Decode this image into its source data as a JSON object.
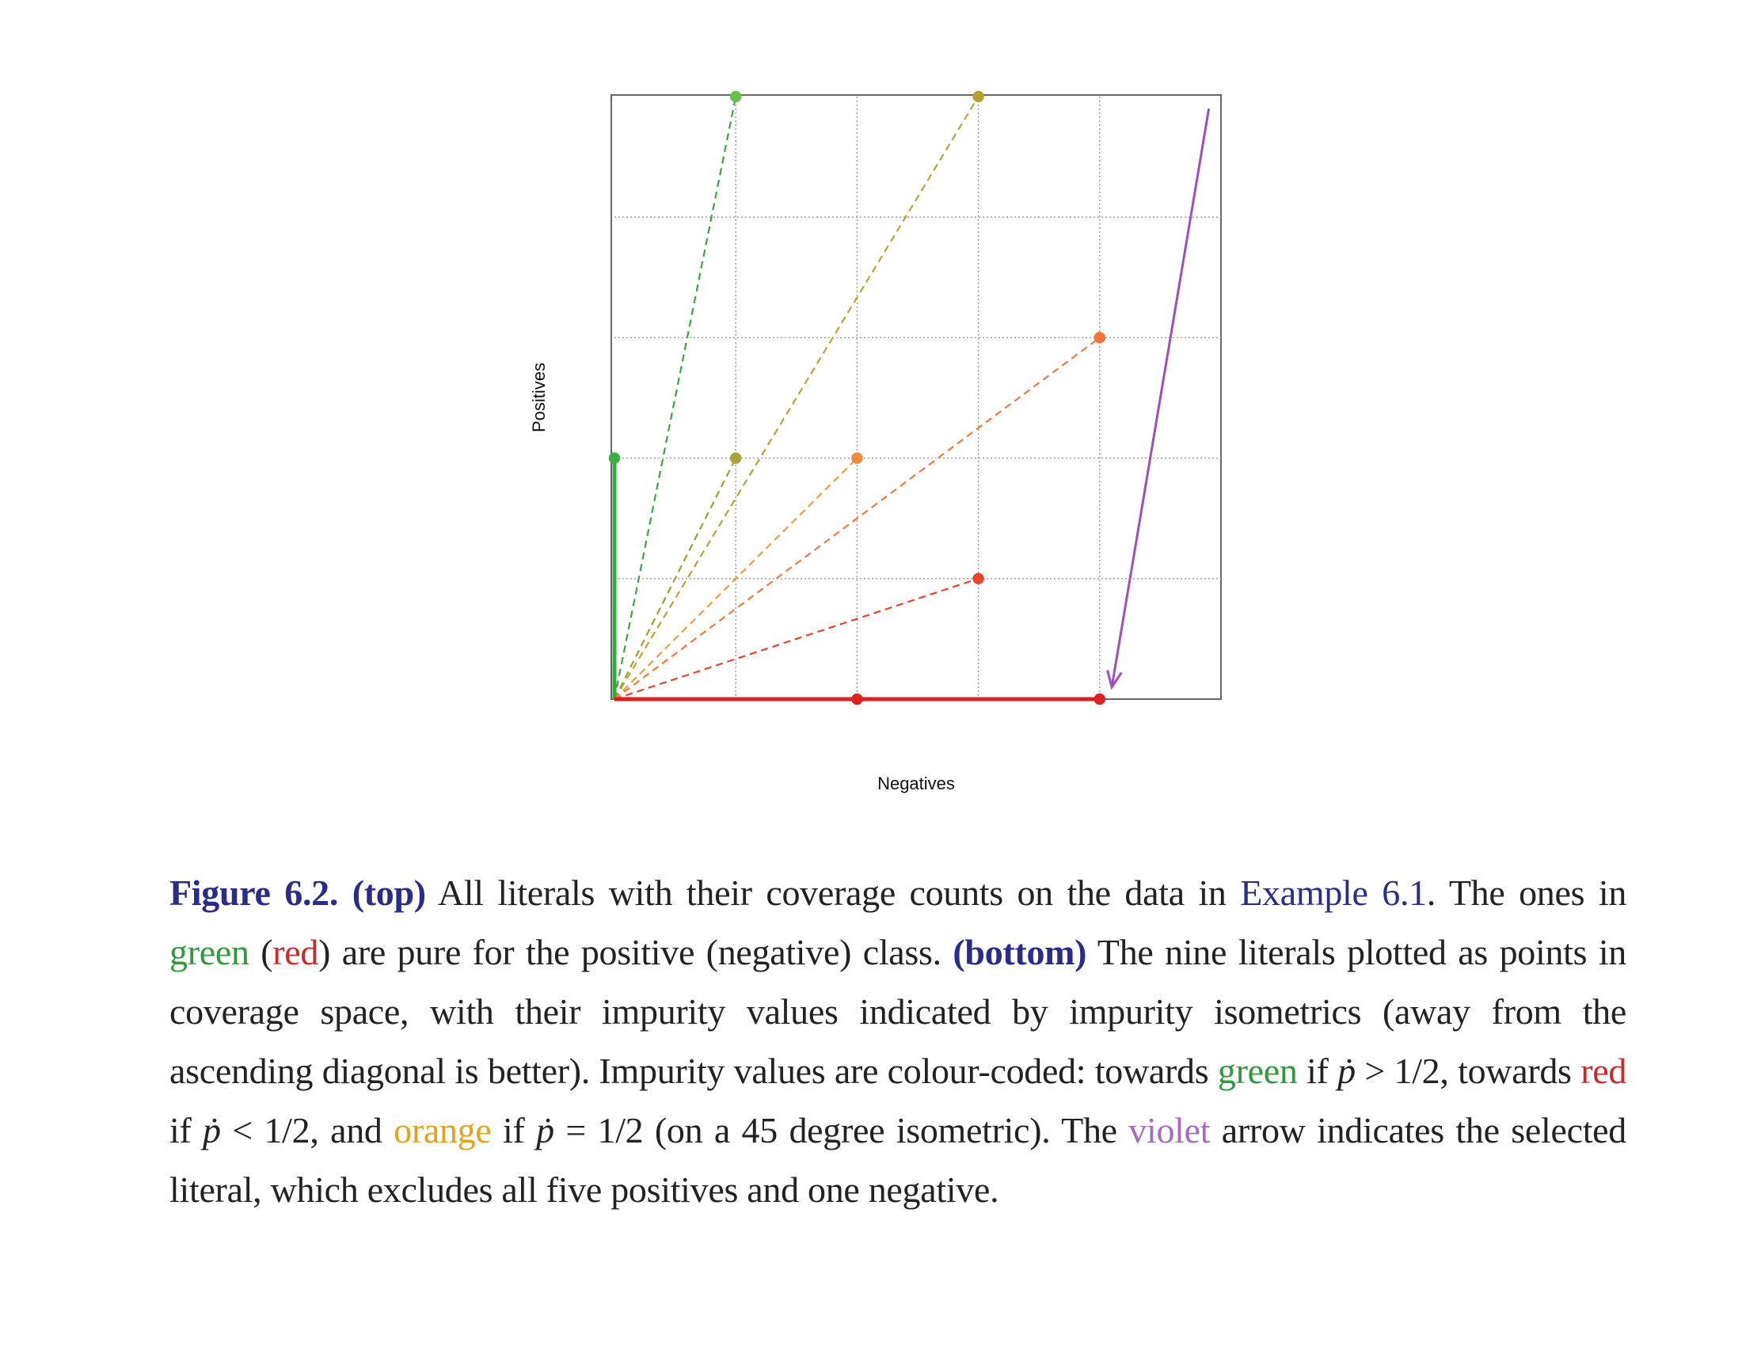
{
  "chart_data": {
    "type": "scatter",
    "xlabel": "Negatives",
    "ylabel": "Positives",
    "xlim": [
      0,
      5
    ],
    "ylim": [
      0,
      5
    ],
    "grid": true,
    "x_ticks": [
      0,
      1,
      2,
      3,
      4,
      5
    ],
    "y_ticks": [
      0,
      1,
      2,
      3,
      4,
      5
    ],
    "points": [
      {
        "x": 0,
        "y": 2,
        "color": "#3cb043"
      },
      {
        "x": 1,
        "y": 5,
        "color": "#6abf45"
      },
      {
        "x": 3,
        "y": 5,
        "color": "#b5a22e"
      },
      {
        "x": 1,
        "y": 2,
        "color": "#a6a23a"
      },
      {
        "x": 2,
        "y": 2,
        "color": "#f08a3c"
      },
      {
        "x": 4,
        "y": 3,
        "color": "#f2743a"
      },
      {
        "x": 3,
        "y": 1,
        "color": "#e8452e"
      },
      {
        "x": 2,
        "y": 0,
        "color": "#dd2222"
      },
      {
        "x": 4,
        "y": 0,
        "color": "#dd2222"
      }
    ],
    "isometrics": [
      {
        "to_x": 1,
        "to_y": 5,
        "color": "#3aa640",
        "pure": false
      },
      {
        "to_x": 3,
        "to_y": 5,
        "color": "#b8a338",
        "pure": false
      },
      {
        "to_x": 1,
        "to_y": 2,
        "color": "#a39b35",
        "pure": false
      },
      {
        "to_x": 2,
        "to_y": 2,
        "color": "#f59a46",
        "pure": false
      },
      {
        "to_x": 4,
        "to_y": 3,
        "color": "#f27a3c",
        "pure": false
      },
      {
        "to_x": 3,
        "to_y": 1,
        "color": "#e8452e",
        "pure": false
      },
      {
        "to_x": 0,
        "to_y": 2,
        "color": "#2fae35",
        "pure": true
      },
      {
        "to_x": 4,
        "to_y": 0,
        "color": "#dd1f1f",
        "pure": true
      }
    ],
    "arrow": {
      "from": [
        4.9,
        4.9
      ],
      "to": [
        4.1,
        0.1
      ],
      "color": "#9b4fc0"
    }
  },
  "caption": {
    "label": "Figure 6.2.",
    "top_tag": "(top)",
    "t1": " All literals with their coverage counts on the data in ",
    "example_ref": "Example 6.1",
    "t2": ". The ones in ",
    "green_word": "green",
    "t3": " (",
    "red_word": "red",
    "t4": ") are pure for the positive (negative) class. ",
    "bottom_tag": "(bottom)",
    "t5": " The nine literals plotted as points in coverage space, with their impurity values indicated by impurity isometrics (away from the ascending diagonal is better). Impurity values are colour-coded: towards ",
    "green_word2": "green",
    "t6": " if ",
    "pdot1": "ṗ",
    "t7": " > 1/2, towards ",
    "red_word2": "red",
    "t8": " if ",
    "pdot2": "ṗ",
    "t9": " < 1/2, and ",
    "orange_word": "orange",
    "t10": " if ",
    "pdot3": "ṗ",
    "t11": " = 1/2 (on a 45 degree isometric). The ",
    "violet_word": "violet",
    "t12": " arrow indicates the selected literal, which excludes all five positives and one negative."
  }
}
